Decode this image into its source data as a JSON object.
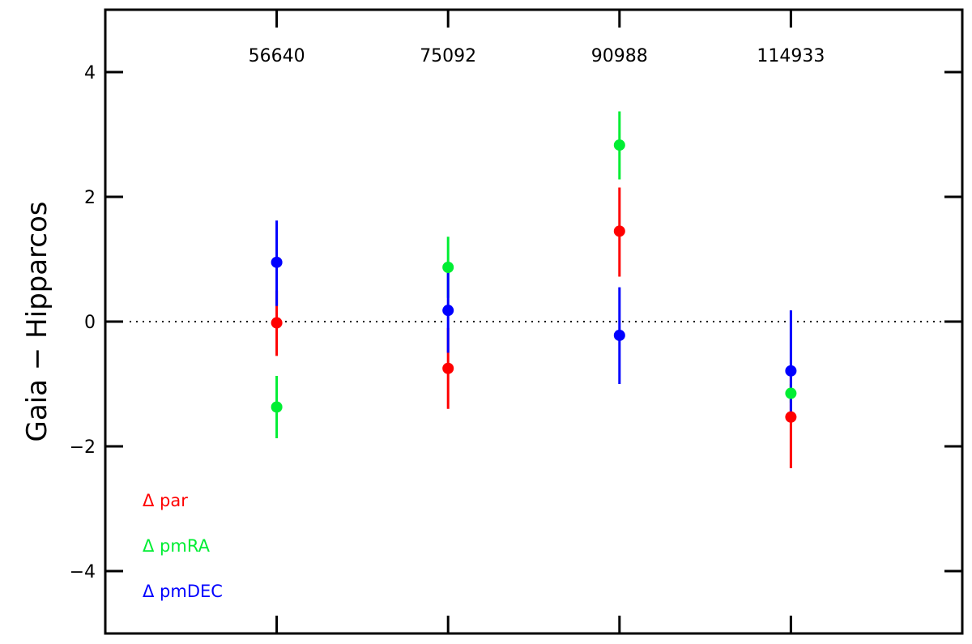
{
  "chart_data": {
    "type": "scatter",
    "xlabel": "",
    "ylabel": "Gaia  −  Hipparcos",
    "categories": [
      "56640",
      "75092",
      "90988",
      "114933"
    ],
    "x_ticks": [
      1,
      2,
      3,
      4
    ],
    "xlim": [
      0,
      5
    ],
    "ylim": [
      -5,
      5
    ],
    "y_ticks": [
      -4,
      -2,
      0,
      2,
      4
    ],
    "y_tick_labels": [
      "−4",
      "−2",
      "0",
      "2",
      "4"
    ],
    "zero_line": true,
    "grid": false,
    "legend_placement": "bottom-left",
    "series": [
      {
        "name": "Δ par",
        "color": "#ff0000",
        "points": [
          {
            "x": 1,
            "y": -0.02,
            "err_lo": -0.55,
            "err_hi": 0.5
          },
          {
            "x": 2,
            "y": -0.75,
            "err_lo": -1.4,
            "err_hi": -0.1
          },
          {
            "x": 3,
            "y": 1.45,
            "err_lo": 0.72,
            "err_hi": 2.15
          },
          {
            "x": 4,
            "y": -1.53,
            "err_lo": -2.35,
            "err_hi": -0.7
          }
        ]
      },
      {
        "name": "Δ pmRA",
        "color": "#00ee33",
        "points": [
          {
            "x": 1,
            "y": -1.37,
            "err_lo": -1.87,
            "err_hi": -0.87
          },
          {
            "x": 2,
            "y": 0.87,
            "err_lo": 0.38,
            "err_hi": 1.36
          },
          {
            "x": 3,
            "y": 2.83,
            "err_lo": 2.28,
            "err_hi": 3.37
          },
          {
            "x": 4,
            "y": -1.15,
            "err_lo": -1.3,
            "err_hi": -1.0
          }
        ]
      },
      {
        "name": "Δ pmDEC",
        "color": "#0000ff",
        "points": [
          {
            "x": 1,
            "y": 0.95,
            "err_lo": 0.25,
            "err_hi": 1.62
          },
          {
            "x": 2,
            "y": 0.18,
            "err_lo": -0.5,
            "err_hi": 0.88
          },
          {
            "x": 3,
            "y": -0.22,
            "err_lo": -1.0,
            "err_hi": 0.55
          },
          {
            "x": 4,
            "y": -0.79,
            "err_lo": -1.55,
            "err_hi": 0.18
          }
        ]
      }
    ]
  }
}
